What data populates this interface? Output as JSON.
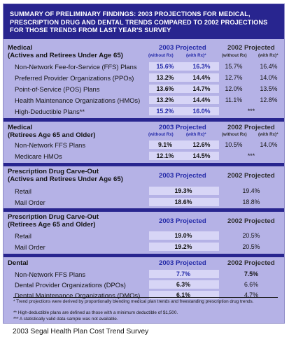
{
  "header": {
    "title": "SUMMARY OF PRELIMINARY FINDINGS: 2003 PROJECTIONS FOR MEDICAL, PRESCRIPTION DRUG AND DENTAL TRENDS COMPARED TO 2002 PROJECTIONS FOR THOSE TRENDS FROM LAST YEAR'S SURVEY"
  },
  "colheads": {
    "p2003": "2003 Projected",
    "p2002": "2002 Projected",
    "without_rx": "(without Rx)",
    "with_rx": "(with Rx)*"
  },
  "sections": [
    {
      "title_lines": [
        "Medical",
        "(Actives and Retirees Under Age 65)"
      ],
      "rows": [
        {
          "label": "Non-Network Fee-for-Service (FFS) Plans",
          "v2003": [
            "15.6%",
            "16.3%"
          ],
          "v2002": [
            "15.7%",
            "16.4%"
          ]
        },
        {
          "label": "Preferred Provider Organizations (PPOs)",
          "v2003": [
            "13.2%",
            "14.4%"
          ],
          "v2002": [
            "12.7%",
            "14.0%"
          ]
        },
        {
          "label": "Point-of-Service (POS) Plans",
          "v2003": [
            "13.6%",
            "14.7%"
          ],
          "v2002": [
            "12.0%",
            "13.5%"
          ]
        },
        {
          "label": "Health Maintenance Organizations (HMOs)",
          "v2003": [
            "13.2%",
            "14.4%"
          ],
          "v2002": [
            "11.1%",
            "12.8%"
          ]
        },
        {
          "label": "High-Deductible Plans**",
          "v2003": [
            "15.2%",
            "16.0%"
          ],
          "v2002": [
            "***"
          ]
        }
      ]
    },
    {
      "title_lines": [
        "Medical",
        "(Retirees Age 65 and Older)"
      ],
      "rows": [
        {
          "label": "Non-Network FFS Plans",
          "v2003": [
            "9.1%",
            "12.6%"
          ],
          "v2002": [
            "10.5%",
            "14.0%"
          ]
        },
        {
          "label": "Medicare HMOs",
          "v2003": [
            "12.1%",
            "14.5%"
          ],
          "v2002": [
            "***"
          ]
        }
      ]
    },
    {
      "title_lines": [
        "Prescription Drug Carve-Out",
        "(Actives and Retirees Under Age 65)"
      ],
      "rows": [
        {
          "label": "Retail",
          "v2003": [
            "19.3%"
          ],
          "v2002": [
            "19.4%"
          ]
        },
        {
          "label": "Mail Order",
          "v2003": [
            "18.6%"
          ],
          "v2002": [
            "18.8%"
          ]
        }
      ]
    },
    {
      "title_lines": [
        "Prescription Drug Carve-Out",
        "(Retirees Age 65 and Older)"
      ],
      "rows": [
        {
          "label": "Retail",
          "v2003": [
            "19.0%"
          ],
          "v2002": [
            "20.5%"
          ]
        },
        {
          "label": "Mail Order",
          "v2003": [
            "19.2%"
          ],
          "v2002": [
            "20.5%"
          ]
        }
      ]
    },
    {
      "title_lines": [
        "Dental"
      ],
      "rows": [
        {
          "label": "Non-Network FFS Plans",
          "v2003": [
            "7.7%"
          ],
          "v2002": [
            "7.5%"
          ]
        },
        {
          "label": "Dental Provider Organizations (DPOs)",
          "v2003": [
            "6.3%"
          ],
          "v2002": [
            "6.6%"
          ]
        },
        {
          "label": "Dental Maintenance Organizations (DMOs)",
          "v2003": [
            "6.1%"
          ],
          "v2002": [
            "4.7%"
          ]
        }
      ]
    }
  ],
  "footnotes": [
    "* Trend projections were derived by proportionally blending medical plan trends and freestanding prescription drug trends.",
    "** High-deductible plans are defined as those with a minimum deductible of $1,500.",
    "*** A statistically valid data sample was not available."
  ],
  "source": "2003 Segal Health Plan Cost Trend Survey",
  "colors": {
    "header_bg": "#28258f",
    "panel_bg": "#b5b2e6",
    "accent_blue": "#242aa8"
  }
}
